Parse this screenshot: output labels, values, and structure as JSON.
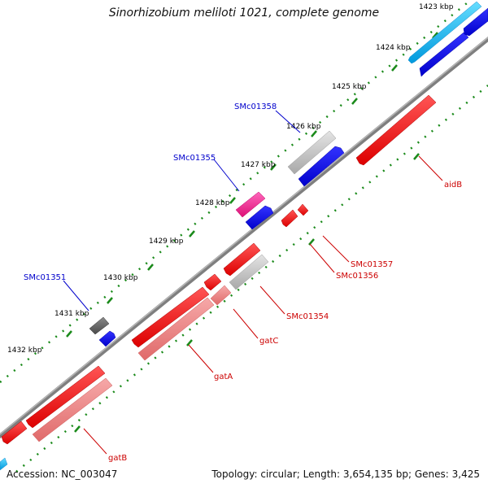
{
  "title": "Sinorhizobium meliloti 1021, complete genome",
  "accession": "Accession: NC_003047",
  "summary": "Topology: circular; Length: 3,654,135 bp; Genes: 3,425",
  "colors": {
    "backbone": "#7f7f7f",
    "tick": "#1a8a1a",
    "forward_label": "#0000cc",
    "reverse_label": "#cc0000",
    "gene_red": "#ee1111",
    "gene_blue": "#1111dd",
    "gene_cyan": "#22bbee",
    "gene_pink": "#ee3399",
    "gene_gray": "#c8c8c8",
    "gene_darkgray": "#6e6e6e",
    "gene_salmon": "#ee8888"
  },
  "kbp_labels": [
    "1423 kbp",
    "1424 kbp",
    "1425 kbp",
    "1426 kbp",
    "1427 kbp",
    "1428 kbp",
    "1429 kbp",
    "1430 kbp",
    "1431 kbp",
    "1432 kbp"
  ],
  "forward_gene_labels": [
    "SMc01358",
    "SMc01355",
    "SMc01351"
  ],
  "reverse_gene_labels": [
    "aidB",
    "SMc01357",
    "SMc01356",
    "SMc01354",
    "gatC",
    "gatA",
    "gatB"
  ]
}
